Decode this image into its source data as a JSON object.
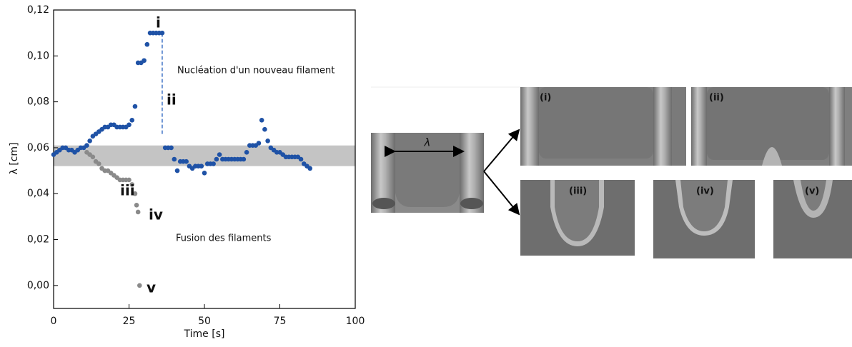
{
  "chart_data": {
    "type": "scatter",
    "xlabel": "Time [s]",
    "ylabel": "λ [cm]",
    "xlim": [
      0,
      100
    ],
    "ylim": [
      -0.01,
      0.12
    ],
    "xticks": [
      0,
      25,
      50,
      75,
      100
    ],
    "yticks": [
      {
        "value": 0,
        "label": "0,00"
      },
      {
        "value": 0.02,
        "label": "0,02"
      },
      {
        "value": 0.04,
        "label": "0,04"
      },
      {
        "value": 0.06,
        "label": "0,06"
      },
      {
        "value": 0.08,
        "label": "0,08"
      },
      {
        "value": 0.1,
        "label": "0,10"
      },
      {
        "value": 0.12,
        "label": "0,12"
      }
    ],
    "band": {
      "color": "#c4c4c4",
      "range": [
        0.052,
        0.061
      ]
    },
    "dashed_line": {
      "color": "#3a6fc4",
      "x": 36,
      "range": [
        0.066,
        0.11
      ]
    },
    "series": [
      {
        "color": "#1f52a6",
        "x": [
          0,
          1,
          2,
          3,
          4,
          5,
          6,
          7,
          8,
          9,
          10,
          11,
          12,
          13,
          14,
          15,
          16,
          17,
          18,
          19,
          20,
          21,
          22,
          23,
          24,
          25,
          26,
          27,
          28,
          29,
          30,
          31,
          32,
          33,
          34,
          35,
          36,
          37,
          38,
          39,
          40,
          41,
          42,
          43,
          44,
          45,
          46,
          47,
          48,
          49,
          50,
          51,
          52,
          53,
          54,
          55,
          56,
          57,
          58,
          59,
          60,
          61,
          62,
          63,
          64,
          65,
          66,
          67,
          68,
          69,
          70,
          71,
          72,
          73,
          74,
          75,
          76,
          77,
          78,
          79,
          80,
          81,
          82,
          83,
          84,
          85
        ],
        "values": [
          0.057,
          0.058,
          0.059,
          0.06,
          0.06,
          0.059,
          0.059,
          0.058,
          0.059,
          0.06,
          0.06,
          0.061,
          0.063,
          0.065,
          0.066,
          0.067,
          0.068,
          0.069,
          0.069,
          0.07,
          0.07,
          0.069,
          0.069,
          0.069,
          0.069,
          0.07,
          0.072,
          0.078,
          0.097,
          0.097,
          0.098,
          0.105,
          0.11,
          0.11,
          0.11,
          0.11,
          0.11,
          0.06,
          0.06,
          0.06,
          0.055,
          0.05,
          0.054,
          0.054,
          0.054,
          0.052,
          0.051,
          0.052,
          0.052,
          0.052,
          0.049,
          0.053,
          0.053,
          0.053,
          0.055,
          0.057,
          0.055,
          0.055,
          0.055,
          0.055,
          0.055,
          0.055,
          0.055,
          0.055,
          0.058,
          0.061,
          0.061,
          0.061,
          0.062,
          0.072,
          0.068,
          0.063,
          0.06,
          0.059,
          0.058,
          0.058,
          0.057,
          0.056,
          0.056,
          0.056,
          0.056,
          0.056,
          0.055,
          0.053,
          0.052,
          0.051
        ]
      },
      {
        "color": "#8a8a8a",
        "x": [
          11,
          12,
          13,
          14,
          15,
          16,
          17,
          18,
          19,
          20,
          21,
          22,
          23,
          24,
          25,
          26,
          27,
          27.5,
          28,
          28.5
        ],
        "values": [
          0.058,
          0.057,
          0.056,
          0.054,
          0.053,
          0.051,
          0.05,
          0.05,
          0.049,
          0.048,
          0.047,
          0.046,
          0.046,
          0.046,
          0.046,
          0.044,
          0.04,
          0.035,
          0.032,
          0.0
        ]
      }
    ],
    "annotations": [
      "i",
      "ii",
      "iii",
      "iv",
      "v",
      "Nucléation d'un nouveau filament",
      "Fusion des filaments"
    ]
  },
  "images": {
    "lambda_label": "λ",
    "panel_labels": [
      "(i)",
      "(ii)",
      "(iii)",
      "(iv)",
      "(v)"
    ]
  }
}
